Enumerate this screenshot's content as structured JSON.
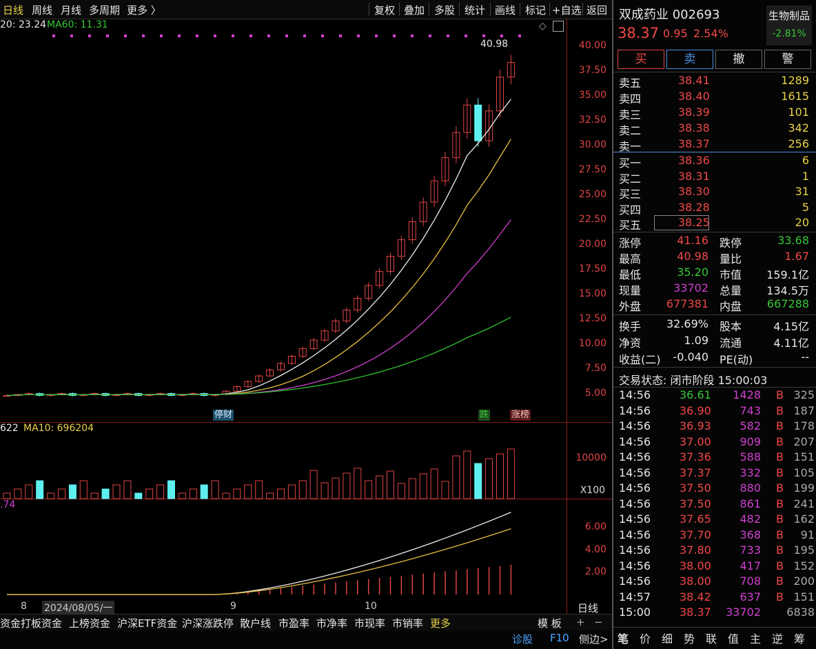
{
  "toolbar": {
    "left": [
      "日线",
      "周线",
      "月线",
      "多周期",
      "更多 〉"
    ],
    "right": [
      "复权",
      "叠加",
      "多股",
      "统计",
      "画线",
      "标记",
      "+自选",
      "返回"
    ]
  },
  "indicators": {
    "ma_top": "20: 23.24",
    "ma60": "MA60: 11.31",
    "vol_val": "622",
    "vol_ma10": "MA10: 696204",
    "macd_val": ".74"
  },
  "price_axis": [
    "40.00",
    "37.50",
    "35.00",
    "32.50",
    "30.00",
    "27.50",
    "25.00",
    "22.50",
    "20.00",
    "17.50",
    "15.00",
    "12.50",
    "10.00",
    "7.50",
    "5.00"
  ],
  "vol_axis": [
    "10000",
    "X100"
  ],
  "macd_axis": [
    "6.00",
    "4.00",
    "2.00"
  ],
  "high_label": "40.98",
  "tags": {
    "stop": "停财",
    "drop": "跌",
    "limit": "涨榜"
  },
  "x_axis": {
    "a": "8",
    "date": "2024/08/05/一",
    "b": "9",
    "c": "10",
    "period": "日线"
  },
  "bottom_tabs": [
    "资金",
    "打板资金",
    "上榜资金",
    "沪深ETF资金",
    "沪深涨跌停",
    "散户线",
    "市盈率",
    "市净率",
    "市现率",
    "市销率",
    "更多"
  ],
  "bottom_right": {
    "template": "模 板",
    "diag": "诊股",
    "f10": "F10",
    "side": "侧边>"
  },
  "stock": {
    "name": "双成药业 002693",
    "sector": "生物制品",
    "sector_change": "-2.81%",
    "price": "38.37",
    "change": "0.95",
    "pct": "2.54%"
  },
  "trade_buttons": [
    "买",
    "卖",
    "撤",
    "警"
  ],
  "asks": [
    {
      "label": "卖五",
      "price": "38.41",
      "vol": "1289"
    },
    {
      "label": "卖四",
      "price": "38.40",
      "vol": "1615"
    },
    {
      "label": "卖三",
      "price": "38.39",
      "vol": "101"
    },
    {
      "label": "卖二",
      "price": "38.38",
      "vol": "342"
    },
    {
      "label": "卖一",
      "price": "38.37",
      "vol": "256"
    }
  ],
  "bids": [
    {
      "label": "买一",
      "price": "38.36",
      "vol": "6"
    },
    {
      "label": "买二",
      "price": "38.31",
      "vol": "1"
    },
    {
      "label": "买三",
      "price": "38.30",
      "vol": "31"
    },
    {
      "label": "买四",
      "price": "38.28",
      "vol": "5"
    },
    {
      "label": "买五",
      "price": "38.25",
      "vol": "20"
    }
  ],
  "stats": [
    {
      "k1": "涨停",
      "v1": "41.16",
      "k2": "跌停",
      "v2": "33.68"
    },
    {
      "k1": "最高",
      "v1": "40.98",
      "k2": "量比",
      "v2": "1.67"
    },
    {
      "k1": "最低",
      "v1": "35.20",
      "k2": "市值",
      "v2": "159.1亿"
    },
    {
      "k1": "现量",
      "v1": "33702",
      "k2": "总量",
      "v2": "134.5万"
    },
    {
      "k1": "外盘",
      "v1": "677381",
      "k2": "内盘",
      "v2": "667288"
    }
  ],
  "fund": [
    {
      "k1": "换手",
      "v1": "32.69%",
      "k2": "股本",
      "v2": "4.15亿"
    },
    {
      "k1": "净资",
      "v1": "1.09",
      "k2": "流通",
      "v2": "4.11亿"
    },
    {
      "k1": "收益(二)",
      "v1": "-0.040",
      "k2": "PE(动)",
      "v2": "--"
    }
  ],
  "status": "交易状态: 闭市阶段 15:00:03",
  "ticks": [
    {
      "t": "14:56",
      "p": "36.61",
      "v": "1428",
      "s": "B",
      "n": "325"
    },
    {
      "t": "14:56",
      "p": "36.90",
      "v": "743",
      "s": "B",
      "n": "187"
    },
    {
      "t": "14:56",
      "p": "36.93",
      "v": "582",
      "s": "B",
      "n": "178"
    },
    {
      "t": "14:56",
      "p": "37.00",
      "v": "909",
      "s": "B",
      "n": "207"
    },
    {
      "t": "14:56",
      "p": "37.36",
      "v": "588",
      "s": "B",
      "n": "151"
    },
    {
      "t": "14:56",
      "p": "37.37",
      "v": "332",
      "s": "B",
      "n": "105"
    },
    {
      "t": "14:56",
      "p": "37.50",
      "v": "880",
      "s": "B",
      "n": "199"
    },
    {
      "t": "14:56",
      "p": "37.50",
      "v": "861",
      "s": "B",
      "n": "241"
    },
    {
      "t": "14:56",
      "p": "37.65",
      "v": "482",
      "s": "B",
      "n": "162"
    },
    {
      "t": "14:56",
      "p": "37.70",
      "v": "368",
      "s": "B",
      "n": "91"
    },
    {
      "t": "14:56",
      "p": "37.80",
      "v": "733",
      "s": "B",
      "n": "195"
    },
    {
      "t": "14:56",
      "p": "38.00",
      "v": "417",
      "s": "B",
      "n": "152"
    },
    {
      "t": "14:56",
      "p": "38.00",
      "v": "708",
      "s": "B",
      "n": "200"
    },
    {
      "t": "14:57",
      "p": "38.42",
      "v": "637",
      "s": "B",
      "n": "151"
    },
    {
      "t": "15:00",
      "p": "38.37",
      "v": "33702",
      "s": "",
      "n": "6838"
    }
  ],
  "panel_tabs": [
    "笔",
    "价",
    "细",
    "势",
    "联",
    "值",
    "主",
    "逆",
    "筹"
  ]
}
